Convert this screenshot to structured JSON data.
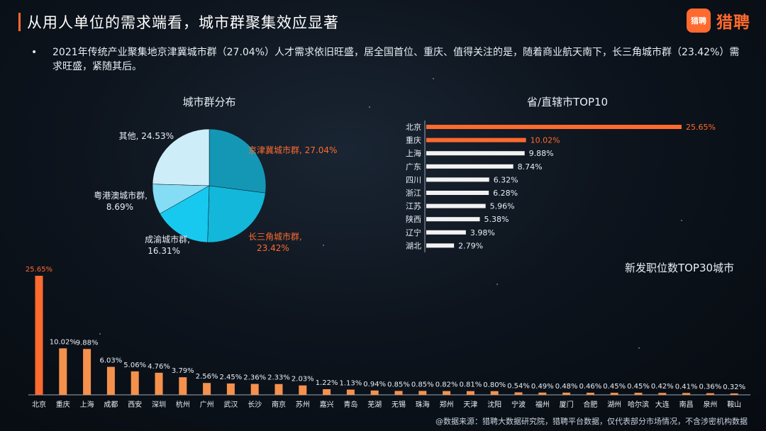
{
  "header": {
    "title": "从用人单位的需求端看，城市群聚集效应显著",
    "logo_mark": "猎聘",
    "logo_text": "猎聘"
  },
  "summary": {
    "bullet": "•",
    "text": "2021年传统产业聚集地京津冀城市群（27.04%）人才需求依旧旺盛，居全国首位、重庆、值得关注的是，随着商业航天南下，长三角城市群（23.42%）需求旺盛，紧随其后。"
  },
  "footer": {
    "source": "@数据来源：猎聘大数据研究院，猎聘平台数据，仅代表部分市场情况，不含涉密机构数据"
  },
  "colors": {
    "orange": "#ff6a2e",
    "bar_orange": "#f5914d",
    "white_bar": "#f2f2f2",
    "pie": [
      "#1497b5",
      "#12b7da",
      "#17c9ef",
      "#84dcf5",
      "#cdeef9"
    ]
  },
  "chart_data": [
    {
      "type": "pie",
      "title": "城市群分布",
      "slices": [
        {
          "label": "京津冀城市群,",
          "value": 27.04,
          "value_label": "27.04%",
          "highlight": true
        },
        {
          "label": "长三角城市群,",
          "value": 23.42,
          "value_label": "23.42%",
          "highlight": true
        },
        {
          "label": "成渝城市群,",
          "value": 16.31,
          "value_label": "16.31%",
          "highlight": false
        },
        {
          "label": "粤港澳城市群,",
          "value": 8.69,
          "value_label": "8.69%",
          "highlight": false
        },
        {
          "label": "其他,",
          "value": 24.53,
          "value_label": "24.53%",
          "highlight": false
        }
      ]
    },
    {
      "type": "bar",
      "orientation": "horizontal",
      "title": "省/直辖市TOP10",
      "categories": [
        "北京",
        "重庆",
        "上海",
        "广东",
        "四川",
        "浙江",
        "江苏",
        "陕西",
        "辽宁",
        "湖北"
      ],
      "values": [
        25.65,
        10.02,
        9.88,
        8.74,
        6.32,
        6.28,
        5.96,
        5.38,
        3.98,
        2.79
      ],
      "labels": [
        "25.65%",
        "10.02%",
        "9.88%",
        "8.74%",
        "6.32%",
        "6.28%",
        "5.96%",
        "5.38%",
        "3.98%",
        "2.79%"
      ],
      "highlight_count": 2
    },
    {
      "type": "bar",
      "orientation": "vertical",
      "title": "新发职位数TOP30城市",
      "categories": [
        "北京",
        "重庆",
        "上海",
        "成都",
        "西安",
        "深圳",
        "杭州",
        "广州",
        "武汉",
        "长沙",
        "南京",
        "苏州",
        "嘉兴",
        "青岛",
        "芜湖",
        "无锡",
        "珠海",
        "郑州",
        "天津",
        "沈阳",
        "宁波",
        "福州",
        "厦门",
        "合肥",
        "湖州",
        "哈尔滨",
        "大连",
        "南昌",
        "泉州",
        "鞍山"
      ],
      "values": [
        25.65,
        10.02,
        9.88,
        6.03,
        5.06,
        4.76,
        3.79,
        2.56,
        2.45,
        2.36,
        2.33,
        2.03,
        1.22,
        1.13,
        0.94,
        0.85,
        0.85,
        0.82,
        0.81,
        0.8,
        0.54,
        0.49,
        0.48,
        0.46,
        0.45,
        0.45,
        0.42,
        0.41,
        0.36,
        0.32
      ],
      "labels": [
        "25.65%",
        "10.02%",
        "9.88%",
        "6.03%",
        "5.06%",
        "4.76%",
        "3.79%",
        "2.56%",
        "2.45%",
        "2.36%",
        "2.33%",
        "2.03%",
        "1.22%",
        "1.13%",
        "0.94%",
        "0.85%",
        "0.85%",
        "0.82%",
        "0.81%",
        "0.80%",
        "0.54%",
        "0.49%",
        "0.48%",
        "0.46%",
        "0.45%",
        "0.45%",
        "0.42%",
        "0.41%",
        "0.36%",
        "0.32%"
      ]
    }
  ]
}
